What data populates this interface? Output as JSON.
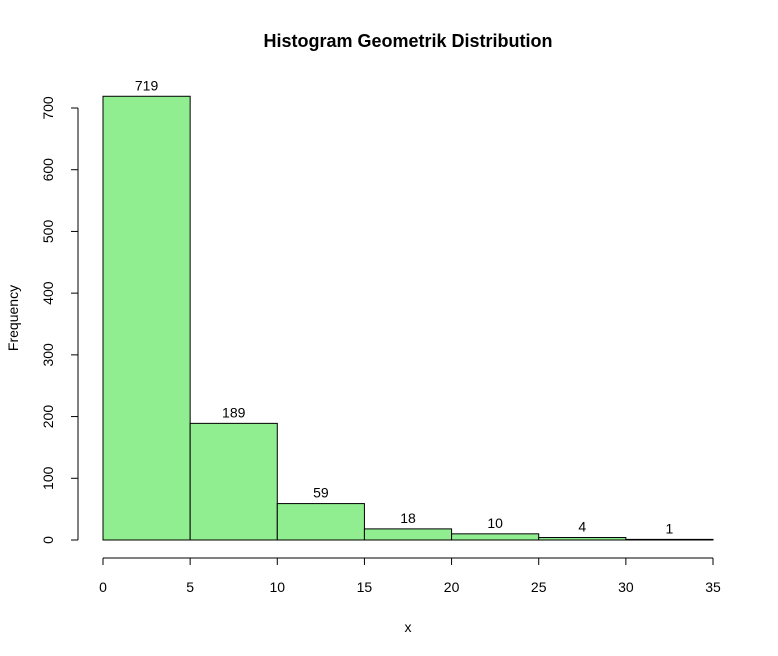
{
  "chart_data": {
    "type": "bar",
    "title": "Histogram Geometrik Distribution",
    "xlabel": "x",
    "ylabel": "Frequency",
    "bins": [
      [
        0,
        5
      ],
      [
        5,
        10
      ],
      [
        10,
        15
      ],
      [
        15,
        20
      ],
      [
        20,
        25
      ],
      [
        25,
        30
      ],
      [
        30,
        35
      ]
    ],
    "values": [
      719,
      189,
      59,
      18,
      10,
      4,
      1
    ],
    "xlim": [
      0,
      35
    ],
    "ylim": [
      0,
      700
    ],
    "x_ticks": [
      0,
      5,
      10,
      15,
      20,
      25,
      30,
      35
    ],
    "y_ticks": [
      0,
      100,
      200,
      300,
      400,
      500,
      600,
      700
    ],
    "bar_color": "#90EE90",
    "bar_border": "#000000",
    "grid": false,
    "legend": "none"
  }
}
